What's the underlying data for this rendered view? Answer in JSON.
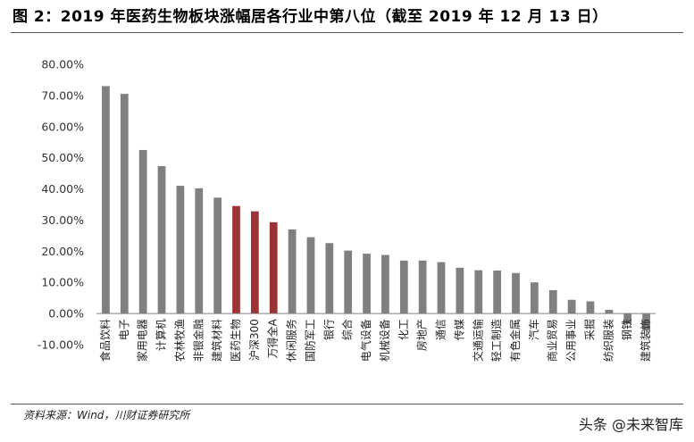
{
  "header": {
    "title": "图 2：2019 年医药生物板块涨幅居各行业中第八位（截至 2019 年 12 月 13 日）"
  },
  "footer": {
    "source": "资料来源：Wind，川财证券研究所",
    "watermark": "头条 @未来智库"
  },
  "colors": {
    "default_bar": "#808080",
    "highlight_bar": "#9B3434",
    "axis": "#808080"
  },
  "chart_data": {
    "type": "bar",
    "title": "",
    "xlabel": "",
    "ylabel": "",
    "ylim": [
      -10,
      80
    ],
    "yticks": [
      -10,
      0,
      10,
      20,
      30,
      40,
      50,
      60,
      70,
      80
    ],
    "ytick_labels": [
      "-10.00%",
      "0.00%",
      "10.00%",
      "20.00%",
      "30.00%",
      "40.00%",
      "50.00%",
      "60.00%",
      "70.00%",
      "80.00%"
    ],
    "grid": false,
    "legend": "none",
    "categories": [
      "食品饮料",
      "电子",
      "家用电器",
      "计算机",
      "农林牧渔",
      "非银金融",
      "建筑材料",
      "医药生物",
      "沪深300",
      "万得全A",
      "休闲服务",
      "国防军工",
      "银行",
      "综合",
      "电气设备",
      "机械设备",
      "化工",
      "房地产",
      "通信",
      "传媒",
      "交通运输",
      "轻工制造",
      "有色金属",
      "汽车",
      "商业贸易",
      "公用事业",
      "采掘",
      "纺织服装",
      "钢铁",
      "建筑装饰"
    ],
    "values": [
      73.0,
      70.5,
      52.5,
      47.3,
      41.0,
      40.2,
      37.2,
      34.5,
      32.8,
      29.3,
      27.0,
      24.5,
      22.6,
      20.2,
      19.2,
      18.8,
      17.0,
      17.0,
      16.5,
      14.7,
      13.9,
      13.8,
      13.0,
      10.0,
      7.5,
      4.4,
      3.9,
      1.2,
      -3.3,
      -5.5
    ],
    "highlighted": [
      "医药生物",
      "沪深300",
      "万得全A"
    ]
  }
}
